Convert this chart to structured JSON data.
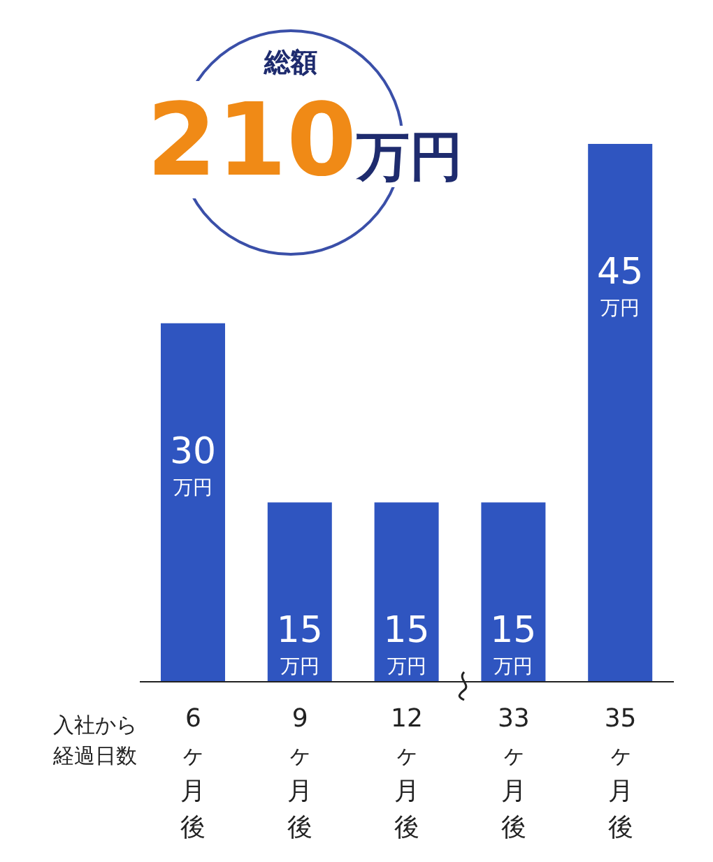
{
  "chart_data": {
    "type": "bar",
    "xlabel": "入社から経過日数",
    "categories": [
      "6ヶ月後",
      "9ヶ月後",
      "12ヶ月後",
      "33ヶ月後",
      "35ヶ月後"
    ],
    "values": [
      30,
      15,
      15,
      15,
      45
    ],
    "color": "#2f55c0",
    "value_labels": [
      "30万円",
      "15万円",
      "15万円",
      "15万円",
      "45万円"
    ],
    "annotations": [
      "総額",
      "210万円"
    ],
    "grid": false,
    "legend": false
  }
}
